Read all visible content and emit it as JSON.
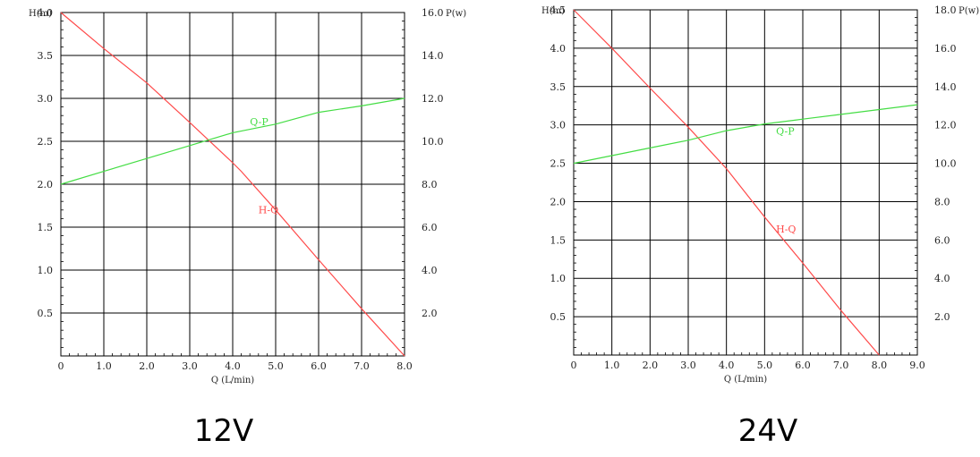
{
  "chart_data": [
    {
      "type": "line",
      "caption": "12V",
      "ylabel_left": "H(m)",
      "ylabel_right": "P(w)",
      "xlabel": "Q (L/min)",
      "xlim": [
        0,
        8
      ],
      "ylim_left": [
        0,
        4
      ],
      "ylim_right": [
        0,
        16
      ],
      "x_ticks": [
        "0",
        "1.0",
        "2.0",
        "3.0",
        "4.0",
        "5.0",
        "6.0",
        "7.0",
        "8.0"
      ],
      "y_ticks_left": [
        "0.5",
        "1.0",
        "1.5",
        "2.0",
        "2.5",
        "3.0",
        "3.5",
        "4.0"
      ],
      "y_ticks_right": [
        "2.0",
        "4.0",
        "6.0",
        "8.0",
        "10.0",
        "12.0",
        "14.0",
        "16.0"
      ],
      "grid": true,
      "series": [
        {
          "name": "H-Q",
          "axis": "left",
          "color": "#ff4a4a",
          "x": [
            0,
            1,
            2,
            3,
            4,
            4.2,
            5,
            6,
            7,
            8
          ],
          "y": [
            4.0,
            3.58,
            3.18,
            2.72,
            2.25,
            2.15,
            1.7,
            1.12,
            0.55,
            0.0
          ]
        },
        {
          "name": "Q-P",
          "axis": "right",
          "color": "#44dd44",
          "x": [
            0,
            1,
            2,
            3,
            4,
            5,
            6,
            7,
            8
          ],
          "y": [
            8.0,
            8.6,
            9.2,
            9.8,
            10.4,
            10.8,
            11.35,
            11.65,
            12.0
          ]
        }
      ]
    },
    {
      "type": "line",
      "caption": "24V",
      "ylabel_left": "H(m)",
      "ylabel_right": "P(w)",
      "xlabel": "Q (L/min)",
      "xlim": [
        0,
        9
      ],
      "ylim_left": [
        0,
        4.5
      ],
      "ylim_right": [
        0,
        18
      ],
      "x_ticks": [
        "0",
        "1.0",
        "2.0",
        "3.0",
        "4.0",
        "5.0",
        "6.0",
        "7.0",
        "8.0",
        "9.0"
      ],
      "y_ticks_left": [
        "0.5",
        "1.0",
        "1.5",
        "2.0",
        "2.5",
        "3.0",
        "3.5",
        "4.0",
        "4.5"
      ],
      "y_ticks_right": [
        "2.0",
        "4.0",
        "6.0",
        "8.0",
        "10.0",
        "12.0",
        "14.0",
        "16.0",
        "18.0"
      ],
      "grid": true,
      "series": [
        {
          "name": "H-Q",
          "axis": "left",
          "color": "#ff4a4a",
          "x": [
            0,
            1,
            2,
            3,
            4,
            5,
            6,
            7,
            8
          ],
          "y": [
            4.5,
            4.0,
            3.48,
            2.97,
            2.43,
            1.8,
            1.2,
            0.58,
            0.0
          ]
        },
        {
          "name": "Q-P",
          "axis": "right",
          "color": "#44dd44",
          "x": [
            0,
            1,
            2,
            3,
            4,
            5,
            6,
            7,
            8,
            9
          ],
          "y": [
            10.0,
            10.4,
            10.8,
            11.2,
            11.7,
            12.05,
            12.3,
            12.55,
            12.8,
            13.05
          ]
        }
      ]
    }
  ]
}
